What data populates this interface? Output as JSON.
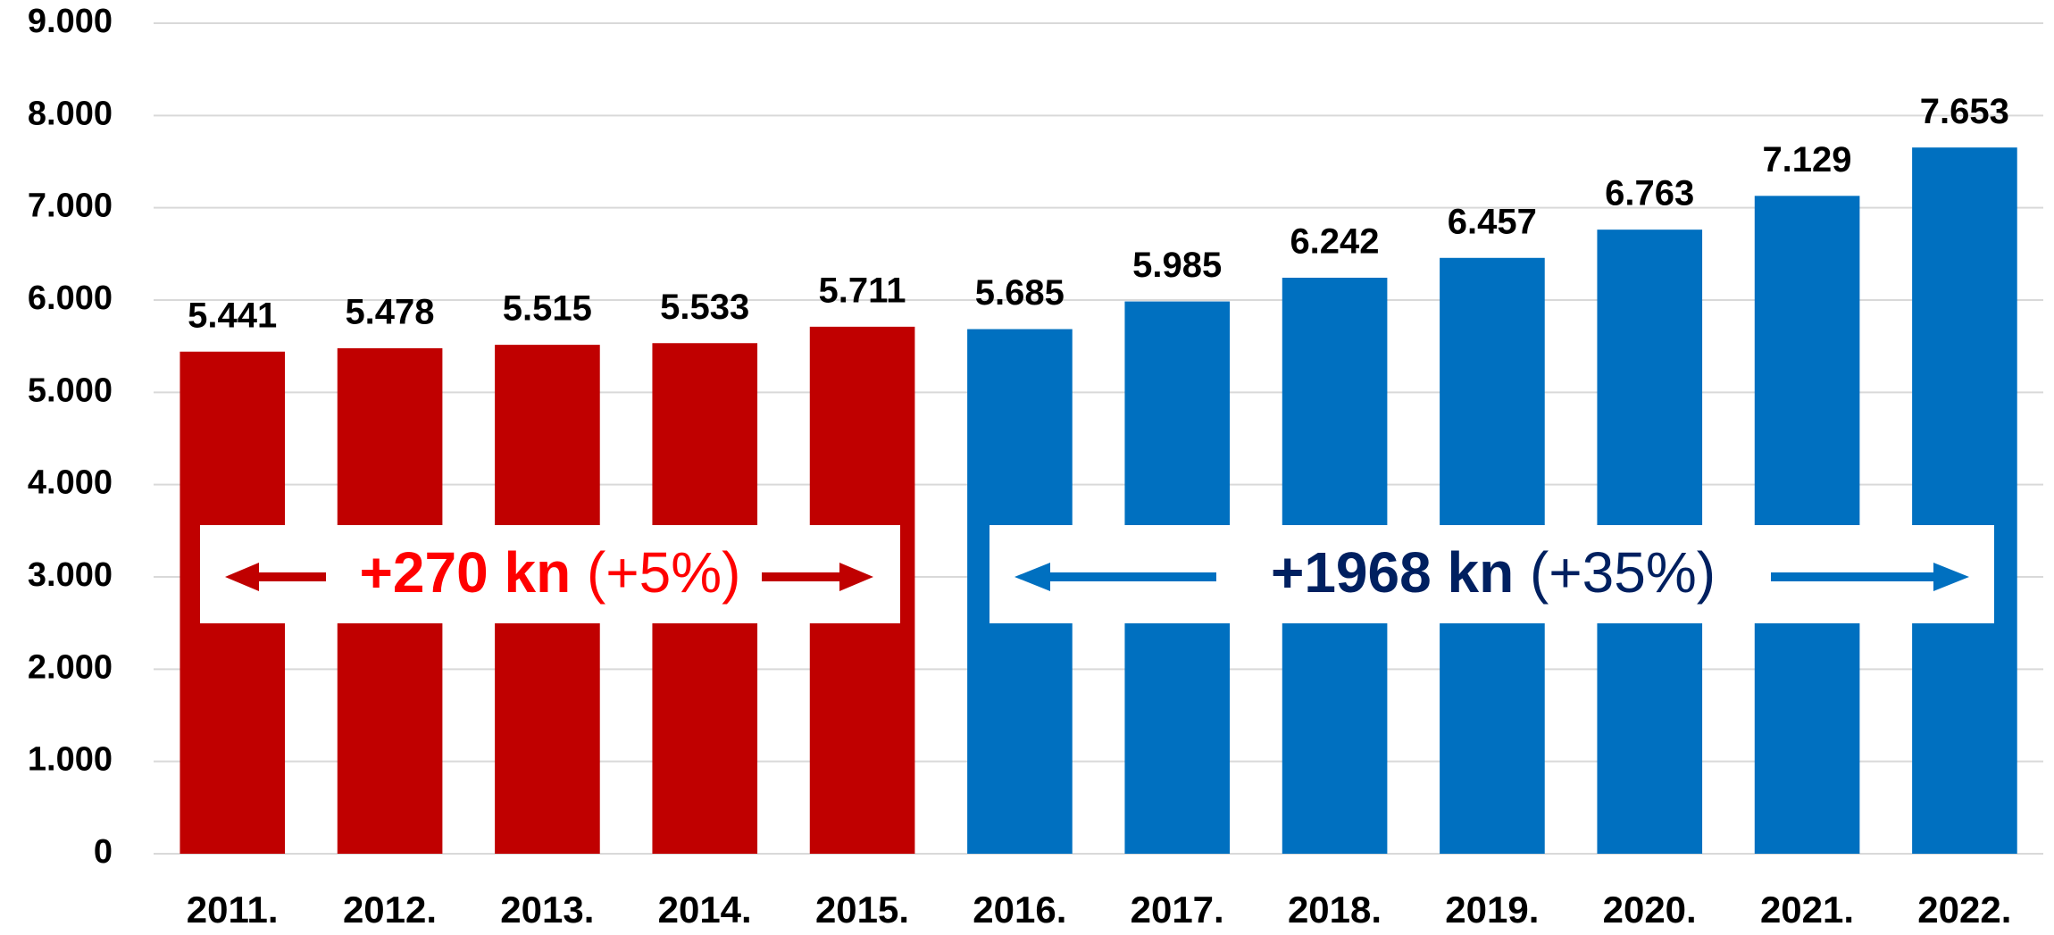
{
  "chart_data": {
    "type": "bar",
    "categories": [
      "2011.",
      "2012.",
      "2013.",
      "2014.",
      "2015.",
      "2016.",
      "2017.",
      "2018.",
      "2019.",
      "2020.",
      "2021.",
      "2022."
    ],
    "values": [
      5441,
      5478,
      5515,
      5533,
      5711,
      5685,
      5985,
      6242,
      6457,
      6763,
      7129,
      7653
    ],
    "value_labels": [
      "5.441",
      "5.478",
      "5.515",
      "5.533",
      "5.711",
      "5.685",
      "5.985",
      "6.242",
      "6.457",
      "6.763",
      "7.129",
      "7.653"
    ],
    "colors": [
      "#c00000",
      "#c00000",
      "#c00000",
      "#c00000",
      "#c00000",
      "#0070c0",
      "#0070c0",
      "#0070c0",
      "#0070c0",
      "#0070c0",
      "#0070c0",
      "#0070c0"
    ],
    "ylim": [
      0,
      9000
    ],
    "yticks": [
      0,
      {
        "value": 1000,
        "label": "1.000"
      },
      {
        "value": 2000,
        "label": "2.000"
      },
      {
        "value": 3000,
        "label": "3.000"
      },
      {
        "value": 4000,
        "label": "4.000"
      },
      {
        "value": 5000,
        "label": "5.000"
      },
      {
        "value": 6000,
        "label": "6.000"
      },
      {
        "value": 7000,
        "label": "7.000"
      },
      {
        "value": 8000,
        "label": "8.000"
      },
      {
        "value": 9000,
        "label": "9.000"
      }
    ],
    "grid": true,
    "annotations": [
      {
        "text": "+270 kn",
        "detail": "(+5%)",
        "color": "#ff0000"
      },
      {
        "text": "+1968 kn",
        "detail": "(+35%)",
        "color": "#002060"
      }
    ]
  }
}
